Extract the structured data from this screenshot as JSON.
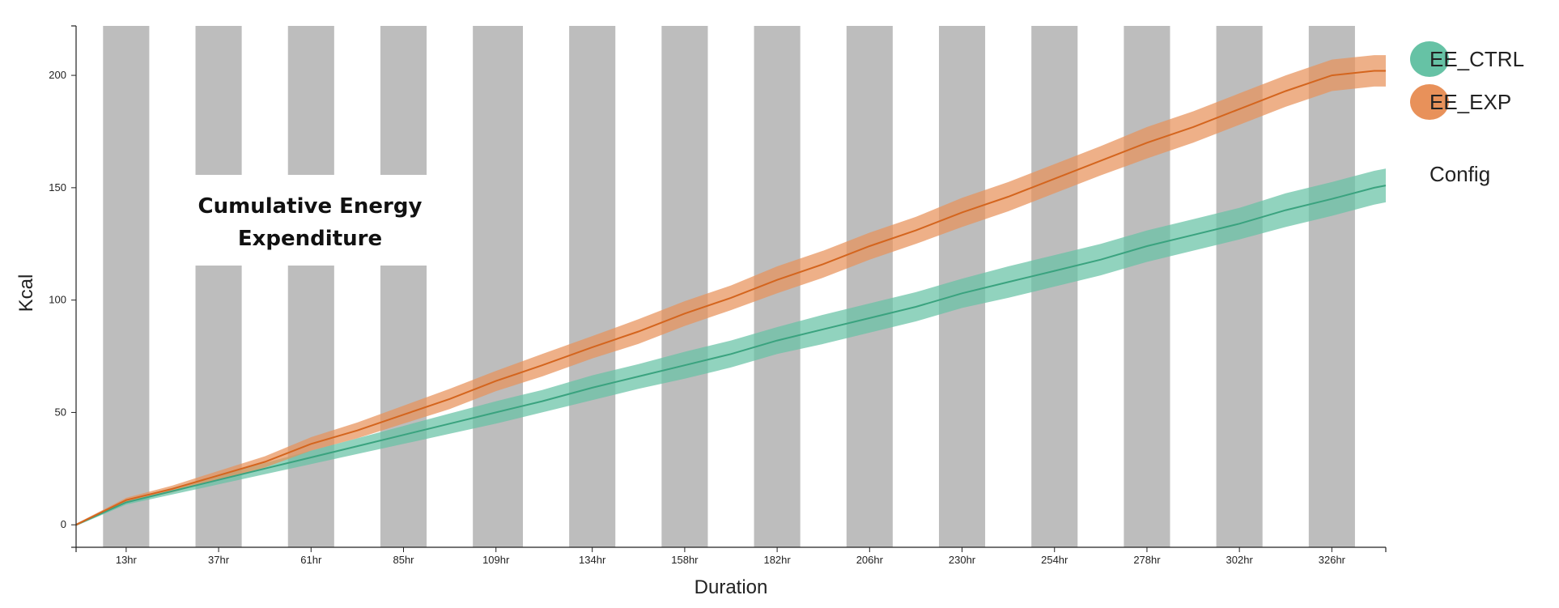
{
  "colors": {
    "ctrl": "#66c2a5",
    "ctrl_line": "#3aa37f",
    "exp": "#e8915a",
    "exp_line": "#d4651e",
    "dark_band": "#bdbdbd"
  },
  "config_label": "Config",
  "chart_data": {
    "type": "line",
    "title_lines": [
      "Cumulative Energy",
      "Expenditure"
    ],
    "xlabel": "Duration",
    "ylabel": "Kcal",
    "xlim": [
      0,
      340
    ],
    "ylim": [
      -10,
      222
    ],
    "x_ticks": [
      {
        "x": 13,
        "label": "13hr"
      },
      {
        "x": 37,
        "label": "37hr"
      },
      {
        "x": 61,
        "label": "61hr"
      },
      {
        "x": 85,
        "label": "85hr"
      },
      {
        "x": 109,
        "label": "109hr"
      },
      {
        "x": 134,
        "label": "134hr"
      },
      {
        "x": 158,
        "label": "158hr"
      },
      {
        "x": 182,
        "label": "182hr"
      },
      {
        "x": 206,
        "label": "206hr"
      },
      {
        "x": 230,
        "label": "230hr"
      },
      {
        "x": 254,
        "label": "254hr"
      },
      {
        "x": 278,
        "label": "278hr"
      },
      {
        "x": 302,
        "label": "302hr"
      },
      {
        "x": 326,
        "label": "326hr"
      }
    ],
    "y_ticks": [
      0,
      50,
      100,
      150,
      200
    ],
    "dark_periods": [
      [
        7,
        19
      ],
      [
        31,
        43
      ],
      [
        55,
        67
      ],
      [
        79,
        91
      ],
      [
        103,
        116
      ],
      [
        128,
        140
      ],
      [
        152,
        164
      ],
      [
        176,
        188
      ],
      [
        200,
        212
      ],
      [
        224,
        236
      ],
      [
        248,
        260
      ],
      [
        272,
        284
      ],
      [
        296,
        308
      ],
      [
        320,
        332
      ]
    ],
    "legend_position": "top-right",
    "series": [
      {
        "name": "EE_CTRL",
        "x": [
          0,
          13,
          25,
          37,
          49,
          61,
          73,
          85,
          97,
          109,
          121,
          134,
          146,
          158,
          170,
          182,
          194,
          206,
          218,
          230,
          242,
          254,
          266,
          278,
          290,
          302,
          314,
          326,
          337,
          340
        ],
        "y": [
          0,
          10,
          15,
          20,
          25,
          30,
          35,
          40,
          45,
          50,
          55,
          61,
          66,
          71,
          76,
          82,
          87,
          92,
          97,
          103,
          108,
          113,
          118,
          124,
          129,
          134,
          140,
          145,
          150,
          151
        ],
        "band": [
          0.5,
          1,
          1.5,
          2,
          2.5,
          3,
          3.5,
          4,
          4.5,
          5,
          5,
          5.5,
          5.5,
          6,
          6,
          6,
          6.5,
          6.5,
          6.5,
          6.5,
          7,
          7,
          7,
          7,
          7,
          7,
          7.5,
          7.5,
          7.5,
          7.5
        ]
      },
      {
        "name": "EE_EXP",
        "x": [
          0,
          13,
          25,
          37,
          49,
          61,
          73,
          85,
          97,
          109,
          121,
          134,
          146,
          158,
          170,
          182,
          194,
          206,
          218,
          230,
          242,
          254,
          266,
          278,
          290,
          302,
          314,
          326,
          337,
          340
        ],
        "y": [
          0,
          11,
          16,
          22,
          28,
          36,
          42,
          49,
          56,
          64,
          71,
          79,
          86,
          94,
          101,
          109,
          116,
          124,
          131,
          139,
          146,
          154,
          162,
          170,
          177,
          185,
          193,
          200,
          202,
          202
        ],
        "band": [
          0.5,
          1,
          1.5,
          2,
          2.5,
          3,
          3.5,
          4,
          4.5,
          4.5,
          5,
          5,
          5.5,
          5.5,
          5.5,
          6,
          6,
          6,
          6,
          6.5,
          6.5,
          6.5,
          6.5,
          7,
          7,
          7,
          7,
          7,
          7,
          7
        ]
      }
    ]
  }
}
